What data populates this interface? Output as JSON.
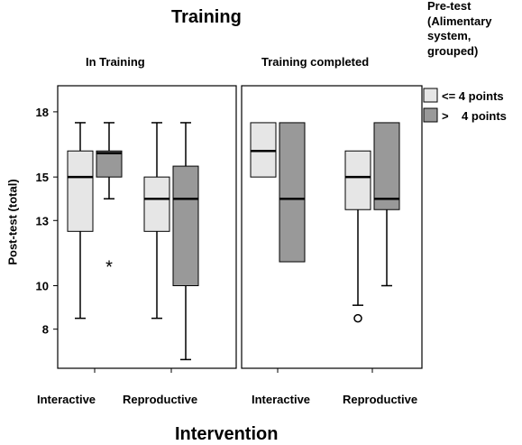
{
  "chart_data": {
    "type": "boxplot",
    "title": "Training",
    "xlabel": "Intervention",
    "ylabel": "Post-test (total)",
    "ylim": [
      6.2,
      19.2
    ],
    "yticks": [
      8,
      10,
      13,
      15,
      18
    ],
    "grid": false,
    "legend": {
      "title": "Pre-test (Alimentary system, grouped)",
      "title_lines": [
        "Pre-test",
        "(Alimentary",
        "system,",
        "grouped)"
      ],
      "placement": "top-right",
      "entries": [
        {
          "label": "<= 4 points",
          "color": "#e6e6e6"
        },
        {
          "label": ">    4 points",
          "color": "#999999"
        }
      ]
    },
    "panels": [
      {
        "label": "In Training",
        "categories": [
          "Interactive",
          "Reproductive"
        ],
        "boxes": [
          {
            "category": "Interactive",
            "group": "<= 4 points",
            "whisker_low": 8.5,
            "q1": 12.5,
            "median": 15.0,
            "q3": 16.2,
            "whisker_high": 17.5,
            "outliers": [],
            "extremes": []
          },
          {
            "category": "Interactive",
            "group": ">    4 points",
            "whisker_low": 14.0,
            "q1": 15.0,
            "median": 16.1,
            "q3": 16.2,
            "whisker_high": 17.5,
            "outliers": [],
            "extremes": [
              11.0
            ]
          },
          {
            "category": "Reproductive",
            "group": "<= 4 points",
            "whisker_low": 8.5,
            "q1": 12.5,
            "median": 14.0,
            "q3": 15.0,
            "whisker_high": 17.5,
            "outliers": [],
            "extremes": []
          },
          {
            "category": "Reproductive",
            "group": ">    4 points",
            "whisker_low": 6.6,
            "q1": 10.0,
            "median": 14.0,
            "q3": 15.5,
            "whisker_high": 17.5,
            "outliers": [],
            "extremes": []
          }
        ]
      },
      {
        "label": "Training completed",
        "categories": [
          "Interactive",
          "Reproductive"
        ],
        "boxes": [
          {
            "category": "Interactive",
            "group": "<= 4 points",
            "whisker_low": 15.0,
            "q1": 15.0,
            "median": 16.2,
            "q3": 17.5,
            "whisker_high": 17.5,
            "outliers": [],
            "extremes": []
          },
          {
            "category": "Interactive",
            "group": ">    4 points",
            "whisker_low": 11.1,
            "q1": 11.1,
            "median": 14.0,
            "q3": 17.5,
            "whisker_high": 17.5,
            "outliers": [],
            "extremes": []
          },
          {
            "category": "Reproductive",
            "group": "<= 4 points",
            "whisker_low": 9.1,
            "q1": 13.5,
            "median": 15.0,
            "q3": 16.2,
            "whisker_high": 16.2,
            "outliers": [
              8.5
            ],
            "extremes": []
          },
          {
            "category": "Reproductive",
            "group": ">    4 points",
            "whisker_low": 10.0,
            "q1": 13.5,
            "median": 14.0,
            "q3": 17.5,
            "whisker_high": 17.5,
            "outliers": [],
            "extremes": []
          }
        ]
      }
    ]
  }
}
